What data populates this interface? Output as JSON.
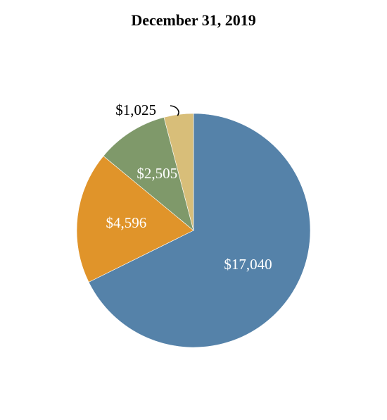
{
  "chart_data": {
    "type": "pie",
    "title": "December 31, 2019",
    "slices": [
      {
        "label": "$17,040",
        "value": 17040,
        "color": "#5582A9",
        "label_color": "#ffffff"
      },
      {
        "label": "$4,596",
        "value": 4596,
        "color": "#E0942A",
        "label_color": "#ffffff"
      },
      {
        "label": "$2,505",
        "value": 2505,
        "color": "#7F996A",
        "label_color": "#ffffff"
      },
      {
        "label": "$1,025",
        "value": 1025,
        "color": "#D8BE79",
        "label_color": "#000000"
      }
    ],
    "direction": "clockwise",
    "start_angle": "12 o'clock"
  }
}
